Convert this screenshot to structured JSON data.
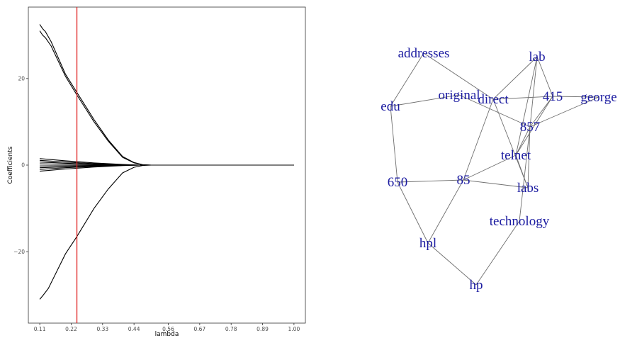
{
  "chart_data": [
    {
      "type": "line",
      "title": "",
      "xlabel": "lambda",
      "ylabel": "Coefficients",
      "xlim": [
        0.07,
        1.04
      ],
      "ylim": [
        -36.5,
        36.5
      ],
      "x_ticks": [
        0.11,
        0.22,
        0.33,
        0.44,
        0.56,
        0.67,
        0.78,
        0.89,
        1.0
      ],
      "x_tick_labels": [
        "0.11",
        "0.22",
        "0.33",
        "0.44",
        "0.56",
        "0.67",
        "0.78",
        "0.89",
        "1.00"
      ],
      "y_ticks": [
        -20,
        0,
        20
      ],
      "y_tick_labels": [
        "−20",
        "0",
        "20"
      ],
      "grid": false,
      "vline": {
        "x": 0.24,
        "color": "#e02020"
      },
      "line_color": "#000000",
      "series": [
        {
          "x": [
            0.11,
            0.12,
            0.13,
            0.15,
            0.2,
            0.24,
            0.3,
            0.35,
            0.4,
            0.44,
            0.47,
            0.5,
            1.0
          ],
          "values": [
            32.5,
            31.5,
            30.8,
            28.5,
            21.0,
            16.8,
            10.5,
            5.8,
            2.0,
            0.6,
            0.1,
            0.0,
            0.0
          ]
        },
        {
          "x": [
            0.11,
            0.12,
            0.13,
            0.15,
            0.2,
            0.24,
            0.3,
            0.35,
            0.4,
            0.44,
            0.47,
            0.5,
            1.0
          ],
          "values": [
            31.0,
            30.0,
            29.4,
            27.5,
            20.5,
            16.2,
            10.0,
            5.5,
            1.8,
            0.5,
            0.1,
            0.0,
            0.0
          ]
        },
        {
          "x": [
            0.11,
            0.12,
            0.14,
            0.2,
            0.24,
            0.3,
            0.35,
            0.4,
            0.44,
            0.47,
            0.5,
            1.0
          ],
          "values": [
            -31.0,
            -30.2,
            -28.5,
            -20.5,
            -16.5,
            -10.0,
            -5.5,
            -1.8,
            -0.5,
            -0.1,
            0.0,
            0.0
          ]
        },
        {
          "x": [
            0.11,
            0.2,
            0.3,
            0.4,
            0.46,
            1.0
          ],
          "values": [
            1.5,
            1.0,
            0.5,
            0.15,
            0.0,
            0.0
          ]
        },
        {
          "x": [
            0.11,
            0.2,
            0.3,
            0.4,
            0.46,
            1.0
          ],
          "values": [
            1.1,
            0.7,
            0.35,
            0.1,
            0.0,
            0.0
          ]
        },
        {
          "x": [
            0.11,
            0.2,
            0.3,
            0.4,
            0.46,
            1.0
          ],
          "values": [
            0.7,
            0.45,
            0.2,
            0.05,
            0.0,
            0.0
          ]
        },
        {
          "x": [
            0.11,
            0.2,
            0.3,
            0.4,
            0.46,
            1.0
          ],
          "values": [
            0.3,
            0.2,
            0.1,
            0.02,
            0.0,
            0.0
          ]
        },
        {
          "x": [
            0.11,
            0.2,
            0.3,
            0.4,
            0.46,
            1.0
          ],
          "values": [
            -0.2,
            -0.15,
            -0.08,
            -0.02,
            0.0,
            0.0
          ]
        },
        {
          "x": [
            0.11,
            0.2,
            0.3,
            0.4,
            0.46,
            1.0
          ],
          "values": [
            -0.6,
            -0.4,
            -0.2,
            -0.05,
            0.0,
            0.0
          ]
        },
        {
          "x": [
            0.11,
            0.2,
            0.3,
            0.4,
            0.46,
            1.0
          ],
          "values": [
            -1.0,
            -0.6,
            -0.3,
            -0.08,
            0.0,
            0.0
          ]
        },
        {
          "x": [
            0.11,
            0.2,
            0.3,
            0.4,
            0.46,
            1.0
          ],
          "values": [
            -1.4,
            -0.9,
            -0.45,
            -0.12,
            0.0,
            0.0
          ]
        }
      ]
    },
    {
      "type": "network",
      "nodes": [
        "addresses",
        "lab",
        "original",
        "direct",
        "415",
        "george",
        "edu",
        "857",
        "telnet",
        "650",
        "85",
        "labs",
        "technology",
        "hpl",
        "hp"
      ],
      "edges": [
        [
          "addresses",
          "edu"
        ],
        [
          "addresses",
          "direct"
        ],
        [
          "edu",
          "original"
        ],
        [
          "edu",
          "650"
        ],
        [
          "original",
          "857"
        ],
        [
          "direct",
          "415"
        ],
        [
          "direct",
          "85"
        ],
        [
          "direct",
          "labs"
        ],
        [
          "lab",
          "direct"
        ],
        [
          "lab",
          "857"
        ],
        [
          "lab",
          "415"
        ],
        [
          "lab",
          "telnet"
        ],
        [
          "415",
          "george"
        ],
        [
          "415",
          "857"
        ],
        [
          "415",
          "telnet"
        ],
        [
          "george",
          "857"
        ],
        [
          "857",
          "telnet"
        ],
        [
          "857",
          "labs"
        ],
        [
          "857",
          "technology"
        ],
        [
          "telnet",
          "85"
        ],
        [
          "telnet",
          "labs"
        ],
        [
          "650",
          "85"
        ],
        [
          "650",
          "hpl"
        ],
        [
          "85",
          "labs"
        ],
        [
          "85",
          "hpl"
        ],
        [
          "technology",
          "hp"
        ],
        [
          "hpl",
          "hp"
        ]
      ],
      "edge_color": "#6e6e6e",
      "label_color": "#1a1aa0"
    }
  ]
}
